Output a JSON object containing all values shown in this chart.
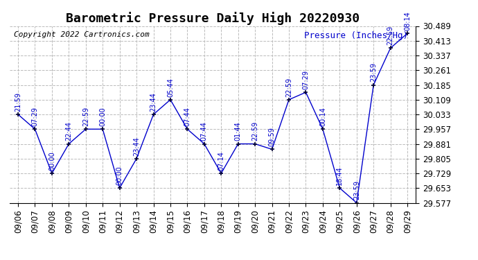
{
  "title": "Barometric Pressure Daily High 20220930",
  "ylabel": "Pressure (Inches/Hg)",
  "copyright": "Copyright 2022 Cartronics.com",
  "dates": [
    "09/06",
    "09/07",
    "09/08",
    "09/09",
    "09/10",
    "09/11",
    "09/12",
    "09/13",
    "09/14",
    "09/15",
    "09/16",
    "09/17",
    "09/18",
    "09/19",
    "09/20",
    "09/21",
    "09/22",
    "09/23",
    "09/24",
    "09/25",
    "09/26",
    "09/27",
    "09/28",
    "09/29"
  ],
  "values": [
    30.033,
    29.957,
    29.729,
    29.881,
    29.957,
    29.957,
    29.653,
    29.805,
    30.033,
    30.109,
    29.957,
    29.881,
    29.729,
    29.881,
    29.881,
    29.853,
    30.109,
    30.147,
    29.957,
    29.653,
    29.577,
    30.185,
    30.375,
    30.451
  ],
  "time_labels": [
    "21:59",
    "07:29",
    "00:00",
    "22:44",
    "22:59",
    "00:00",
    "00:00",
    "23:44",
    "23:44",
    "05:44",
    "07:44",
    "07:44",
    "07:14",
    "01:44",
    "22:59",
    "09:59",
    "22:59",
    "07:29",
    "00:14",
    "18:44",
    "23:59",
    "23:59",
    "22:59",
    "08:14"
  ],
  "line_color": "#0000CC",
  "marker_color": "#000033",
  "grid_color": "#BBBBBB",
  "background_color": "#FFFFFF",
  "ylim_min": 29.577,
  "ylim_max": 30.489,
  "yticks": [
    29.577,
    29.653,
    29.729,
    29.805,
    29.881,
    29.957,
    30.033,
    30.109,
    30.185,
    30.261,
    30.337,
    30.413,
    30.489
  ],
  "title_fontsize": 13,
  "label_fontsize": 9,
  "tick_fontsize": 8.5,
  "copyright_fontsize": 8,
  "annot_fontsize": 7
}
